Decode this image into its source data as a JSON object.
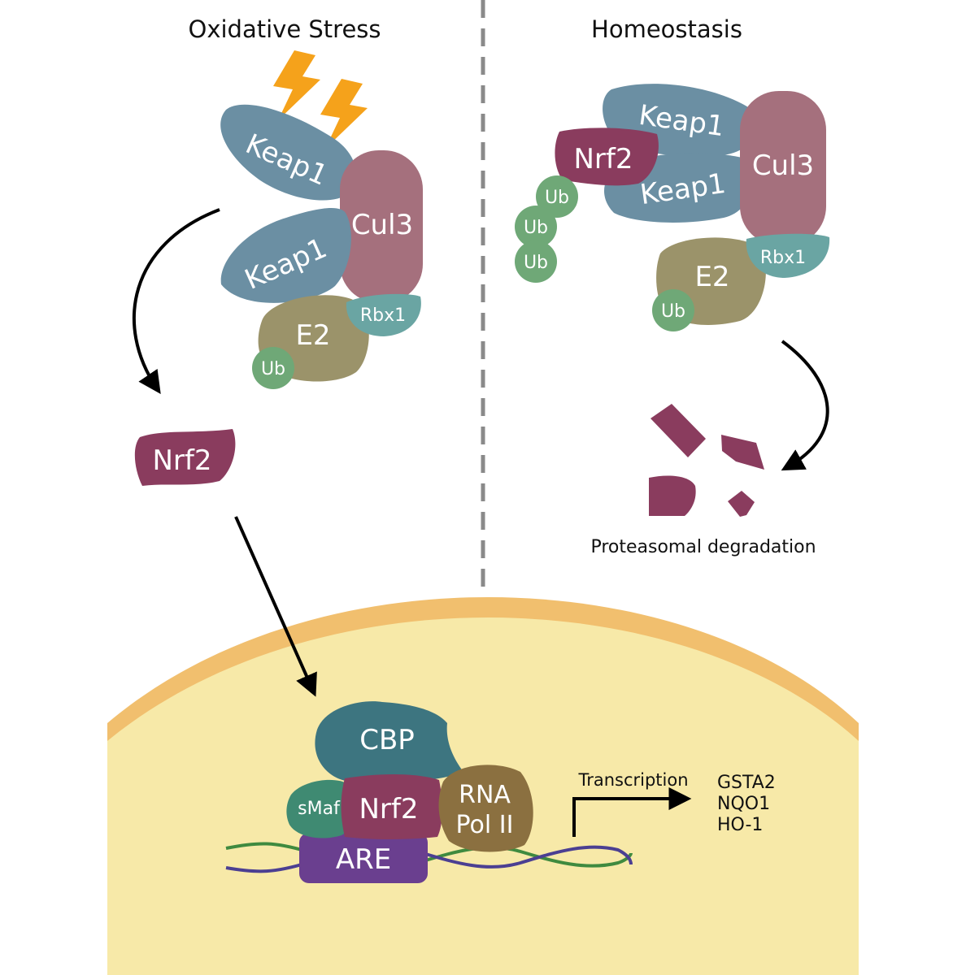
{
  "panels": {
    "left_title": "Oxidative Stress",
    "right_title": "Homeostasis"
  },
  "proteins": {
    "keap1": "Keap1",
    "cul3": "Cul3",
    "e2": "E2",
    "rbx1": "Rbx1",
    "ub": "Ub",
    "nrf2": "Nrf2",
    "cbp": "CBP",
    "smaf": "sMaf",
    "are": "ARE",
    "rna_pol_line1": "RNA",
    "rna_pol_line2": "Pol II"
  },
  "labels": {
    "degradation": "Proteasomal degradation",
    "transcription": "Transcription"
  },
  "target_genes": [
    "GSTA2",
    "NQO1",
    "HO-1"
  ],
  "colors": {
    "keap1": "#6b8fa3",
    "cul3": "#a5707d",
    "e2": "#9b936a",
    "rbx1": "#6aa5a3",
    "ub": "#6fa877",
    "nrf2": "#8a3c5e",
    "cbp": "#3d7580",
    "smaf": "#3f8a72",
    "are": "#6a3f8f",
    "rna_pol": "#8b7040",
    "lightning": "#f5a21b",
    "nucleus_fill": "#f7e9a8",
    "nucleus_membrane": "#f1bf6e",
    "dna_strand_a": "#3f8a3f",
    "dna_strand_b": "#4b3f92",
    "divider": "#8a8a8a"
  }
}
